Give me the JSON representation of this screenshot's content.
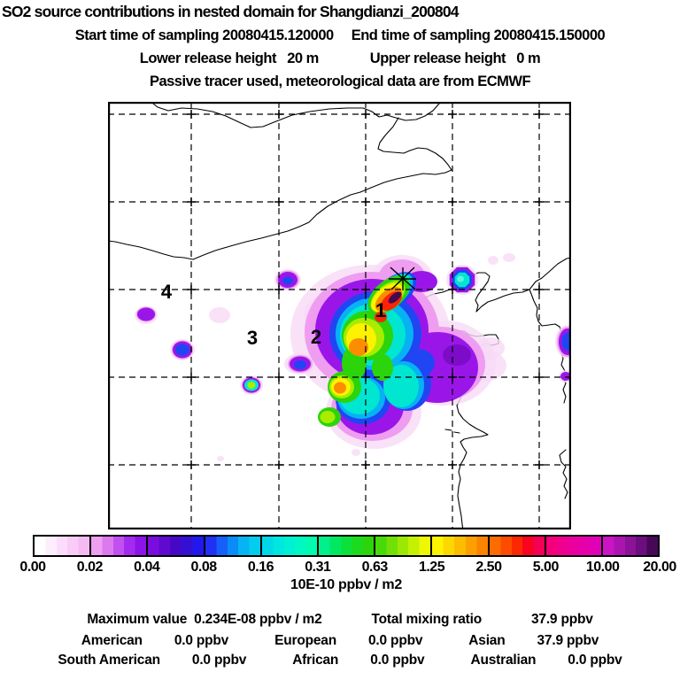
{
  "header": {
    "title": "SO2 source contributions in nested domain for Shangdianzi_200804",
    "start_time": "Start time of sampling 20080415.120000",
    "end_time": "End time of sampling 20080415.150000",
    "lower_release": "Lower release height   20 m",
    "upper_release": "Upper release height   0 m",
    "tracer_note": "Passive tracer used, meteorological data are from ECMWF"
  },
  "map": {
    "source_labels": [
      {
        "text": "1"
      },
      {
        "text": "2"
      },
      {
        "text": "3"
      },
      {
        "text": "4"
      }
    ],
    "receptor": {
      "name": "Shangdianzi",
      "symbol": "asterisk"
    }
  },
  "colorbar": {
    "unit": "10E-10 ppbv / m2",
    "tick_labels": [
      "0.00",
      "0.02",
      "0.04",
      "0.08",
      "0.16",
      "0.31",
      "0.63",
      "1.25",
      "2.50",
      "5.00",
      "10.00",
      "20.00"
    ],
    "segments": [
      [
        "#ffffff",
        "#fdeefd",
        "#fbddfb",
        "#f9ccf8",
        "#f6baf3"
      ],
      [
        "#ee9ff0",
        "#dd79ee",
        "#c250f0",
        "#a52af0",
        "#8d14e9"
      ],
      [
        "#7b0ce0",
        "#600ad0",
        "#4708c6",
        "#3310d2",
        "#2018ec"
      ],
      [
        "#2030f4",
        "#1560f8",
        "#0a8cf8",
        "#06b4f4",
        "#04ccee"
      ],
      [
        "#00d8e8",
        "#00e6e0",
        "#00f0d4",
        "#00f8c2",
        "#00fcae"
      ],
      [
        "#00f08c",
        "#00e862",
        "#0ce03c",
        "#1cda1e",
        "#2cd40c"
      ],
      [
        "#48da08",
        "#70e006",
        "#9ae804",
        "#c4f002",
        "#eef800"
      ],
      [
        "#fcf400",
        "#fcd800",
        "#fcbc00",
        "#fca000",
        "#fc8400"
      ],
      [
        "#fc6c00",
        "#fc4c00",
        "#fc2800",
        "#f90420",
        "#f40054"
      ],
      [
        "#f5007a",
        "#f0008e",
        "#eb009e",
        "#e600ac",
        "#e100b8"
      ],
      [
        "#cb14c6",
        "#ac14b0",
        "#8c1298",
        "#6c0e80",
        "#480858"
      ]
    ]
  },
  "stats": {
    "max_label": "Maximum value",
    "max_value": "0.234E-08 ppbv / m2",
    "total_label": "Total mixing ratio",
    "total_value": "37.9 ppbv",
    "regions": [
      {
        "name": "American",
        "value": "0.0 ppbv"
      },
      {
        "name": "European",
        "value": "0.0 ppbv"
      },
      {
        "name": "Asian",
        "value": "37.9 ppbv"
      },
      {
        "name": "South American",
        "value": "0.0 ppbv"
      },
      {
        "name": "African",
        "value": "0.0 ppbv"
      },
      {
        "name": "Australian",
        "value": "0.0 ppbv"
      }
    ]
  },
  "chart_data": {
    "type": "heatmap",
    "title": "SO2 source contributions in nested domain for Shangdianzi_200804",
    "sampling": {
      "start": "20080415.120000",
      "end": "20080415.150000"
    },
    "release_heights": {
      "lower_m": 20,
      "upper_m": 0
    },
    "tracer": "Passive tracer used, meteorological data are from ECMWF",
    "scale": {
      "unit": "10E-10 ppbv / m2",
      "levels": [
        0.0,
        0.02,
        0.04,
        0.08,
        0.16,
        0.31,
        0.63,
        1.25,
        2.5,
        5.0,
        10.0,
        20.0
      ]
    },
    "maximum_value": "0.234E-08 ppbv / m2",
    "total_mixing_ratio_ppbv": 37.9,
    "contributions_ppbv": {
      "American": 0.0,
      "European": 0.0,
      "Asian": 37.9,
      "South American": 0.0,
      "African": 0.0,
      "Australian": 0.0
    },
    "numbered_sources": [
      "1",
      "2",
      "3",
      "4"
    ],
    "legend_position": "bottom",
    "grid": "5x5 dashed lat-lon graticule without tick labels; coastlines and borders drawn in black",
    "features": "Strong SO2 source-contribution plume oriented NE-SW through the receptor (asterisk), with peak (dark purple, >10 units) just SW of the receptor labelled 1; broad cyan/blue/purple lobe extending S and E over the Bohai coast; isolated cyan maximum NE of the receptor; weak purple patches W and NW near labels 2, 3 and 4"
  }
}
